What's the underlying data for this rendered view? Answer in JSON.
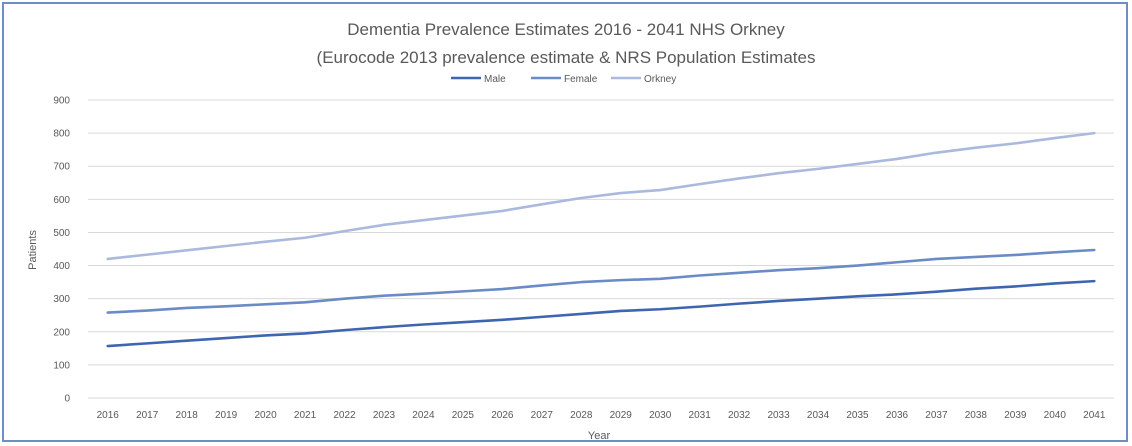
{
  "chart_data": {
    "type": "line",
    "title": "Dementia Prevalence Estimates 2016 - 2041 NHS Orkney",
    "subtitle": "(Eurocode 2013 prevalence estimate & NRS Population Estimates",
    "xlabel": "Year",
    "ylabel": "Patients",
    "ylim": [
      0,
      900
    ],
    "yticks": [
      "0",
      "100",
      "200",
      "300",
      "400",
      "500",
      "600",
      "700",
      "800",
      "900"
    ],
    "grid": true,
    "legend_position": "top",
    "categories": [
      "2016",
      "2017",
      "2018",
      "2019",
      "2020",
      "2021",
      "2022",
      "2023",
      "2024",
      "2025",
      "2026",
      "2027",
      "2028",
      "2029",
      "2030",
      "2031",
      "2032",
      "2033",
      "2034",
      "2035",
      "2036",
      "2037",
      "2038",
      "2039",
      "2040",
      "2041"
    ],
    "series": [
      {
        "name": "Male",
        "color": "#3e66b0",
        "values": [
          157,
          165,
          173,
          181,
          189,
          195,
          205,
          214,
          222,
          229,
          236,
          245,
          254,
          263,
          268,
          276,
          285,
          293,
          300,
          307,
          313,
          321,
          330,
          337,
          346,
          353
        ]
      },
      {
        "name": "Female",
        "color": "#6a8bc6",
        "values": [
          258,
          264,
          272,
          277,
          283,
          289,
          300,
          309,
          315,
          322,
          329,
          340,
          350,
          356,
          360,
          370,
          378,
          386,
          392,
          400,
          410,
          420,
          426,
          432,
          440,
          447
        ]
      },
      {
        "name": "Orkney",
        "color": "#aab9dd",
        "values": [
          420,
          433,
          446,
          459,
          472,
          484,
          504,
          523,
          537,
          551,
          565,
          585,
          604,
          619,
          628,
          646,
          663,
          679,
          692,
          707,
          722,
          741,
          756,
          769,
          785,
          800
        ]
      }
    ]
  }
}
